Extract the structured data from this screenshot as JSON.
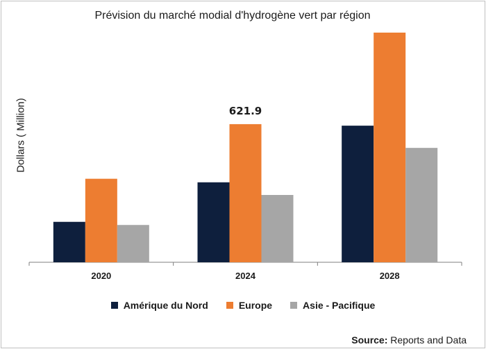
{
  "chart_data": {
    "type": "bar",
    "title": "Prévision du marché modial d'hydrogène vert par région",
    "xlabel": "",
    "ylabel": "Dollars ( Million)",
    "categories": [
      "2020",
      "2024",
      "2028"
    ],
    "series": [
      {
        "name": "Amérique du Nord",
        "color": "#0e1f3d",
        "values": [
          182,
          360,
          615
        ]
      },
      {
        "name": "Europe",
        "color": "#ed7d31",
        "values": [
          376,
          621.9,
          1034
        ]
      },
      {
        "name": "Asie - Pacifique",
        "color": "#a6a6a6",
        "values": [
          168,
          303,
          515
        ]
      }
    ],
    "annotations": [
      {
        "category": "2024",
        "series": "Europe",
        "text": "621.9"
      }
    ],
    "ylim": [
      0,
      1034
    ],
    "grid": false,
    "legend_position": "bottom"
  },
  "source": {
    "label": "Source:",
    "text": " Reports and Data"
  }
}
